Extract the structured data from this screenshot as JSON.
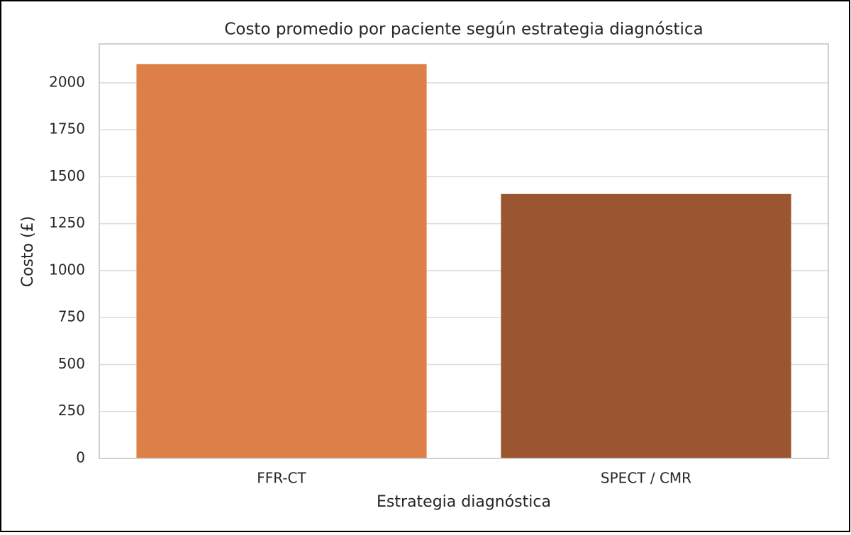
{
  "chart_data": {
    "type": "bar",
    "title": "Costo promedio por paciente según estrategia diagnóstica",
    "x_label": "Estrategia diagnóstica",
    "y_label": "Costo (£)",
    "categories": [
      "FFR-CT",
      "SPECT / CMR"
    ],
    "values": [
      2100,
      1408
    ],
    "colors": [
      "#dc8048",
      "#9b5530"
    ],
    "ylim": [
      0,
      2207
    ],
    "yticks": [
      0,
      250,
      500,
      750,
      1000,
      1250,
      1500,
      1750,
      2000
    ],
    "grid": true
  }
}
